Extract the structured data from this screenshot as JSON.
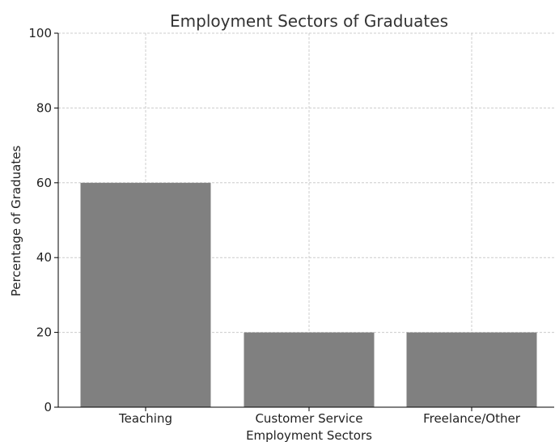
{
  "chart_data": {
    "type": "bar",
    "title": "Employment Sectors of Graduates",
    "xlabel": "Employment Sectors",
    "ylabel": "Percentage of Graduates",
    "categories": [
      "Teaching",
      "Customer Service",
      "Freelance/Other"
    ],
    "values": [
      60,
      20,
      20
    ],
    "ylim": [
      0,
      100
    ],
    "yticks": [
      0,
      20,
      40,
      60,
      80,
      100
    ],
    "grid": true,
    "bar_color": "#808080",
    "grid_color": "#cccccc"
  }
}
